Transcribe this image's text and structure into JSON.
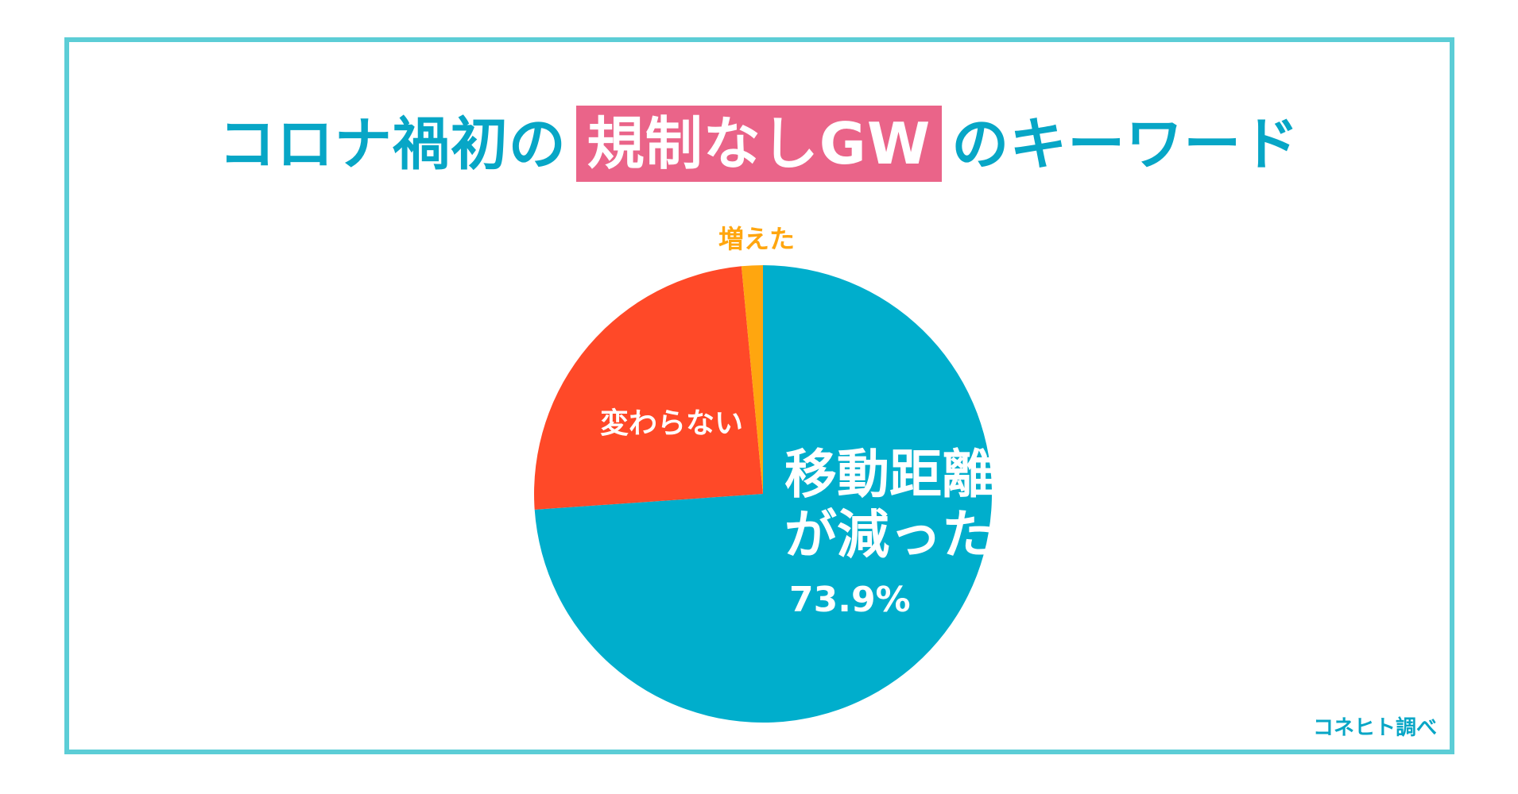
{
  "title": {
    "pre": "コロナ禍初の",
    "highlight": "規制なしGW",
    "post": "のキーワード"
  },
  "source": "コネヒト調べ",
  "colors": {
    "frame": "#5ccdd6",
    "title": "#07a6c6",
    "highlight_bg": "#ea6489",
    "decreased": "#00aecc",
    "unchanged": "#ff4928",
    "increased": "#ffa60f"
  },
  "chart_data": {
    "type": "pie",
    "start": "top",
    "direction": "clockwise",
    "slices": [
      {
        "label_lines": [
          "移動距離",
          "が減った"
        ],
        "value": 73.9,
        "value_label": "73.9%",
        "color": "#00aecc"
      },
      {
        "label_lines": [
          "変わらない"
        ],
        "value": 24.6,
        "value_label": "",
        "color": "#ff4928"
      },
      {
        "label_lines": [
          "増えた"
        ],
        "value": 1.5,
        "value_label": "",
        "color": "#ffa60f"
      }
    ]
  }
}
